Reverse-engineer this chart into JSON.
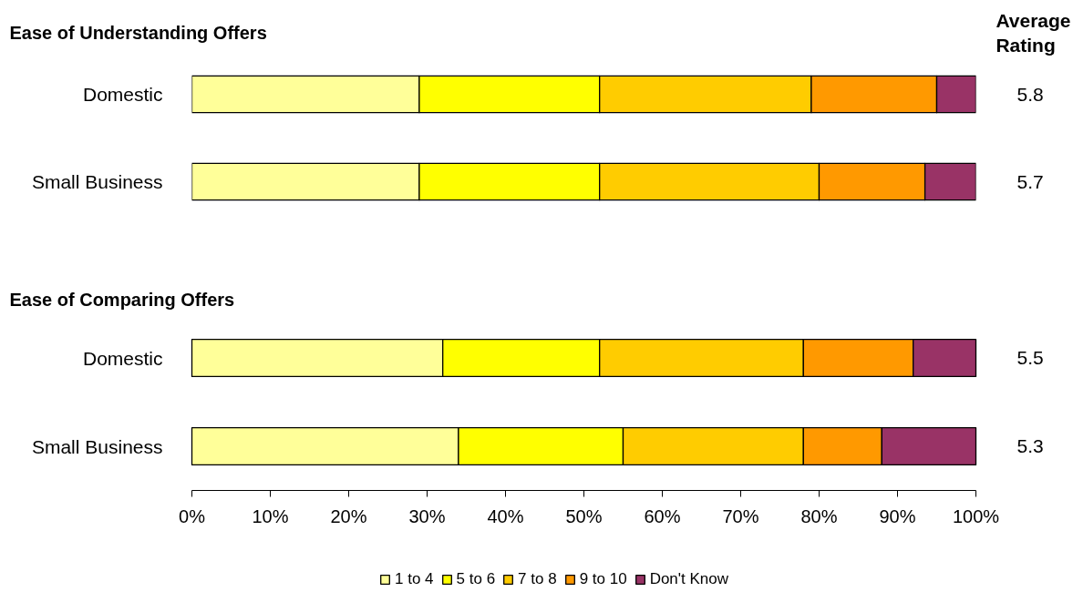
{
  "chart_data": [
    {
      "type": "bar",
      "orientation": "horizontal",
      "stacked": true,
      "title": "Ease of Understanding Offers",
      "categories": [
        "Domestic",
        "Small Business"
      ],
      "series": [
        {
          "color": "#ffff99",
          "values": [
            29,
            29
          ]
        },
        {
          "color": "#ffff00",
          "values": [
            23,
            23
          ]
        },
        {
          "color": "#ffcc00",
          "values": [
            27,
            28
          ]
        },
        {
          "color": "#ff9900",
          "values": [
            16,
            13.5
          ]
        },
        {
          "color": "#993366",
          "values": [
            5,
            6.5
          ]
        }
      ],
      "xlim": [
        0,
        100
      ],
      "tick_labels": "y",
      "annotations": [
        "Average Rating",
        "5.8",
        "5.7"
      ]
    },
    {
      "type": "bar",
      "orientation": "horizontal",
      "stacked": true,
      "title": "Ease of Comparing Offers",
      "categories": [
        "Domestic",
        "Small Business"
      ],
      "series": [
        {
          "name": "1 to 4",
          "color": "#ffff99",
          "values": [
            32,
            34
          ]
        },
        {
          "name": "5 to 6",
          "color": "#ffff00",
          "values": [
            20,
            21
          ]
        },
        {
          "name": "7 to 8",
          "color": "#ffcc00",
          "values": [
            26,
            23
          ]
        },
        {
          "name": "9 to 10",
          "color": "#ff9900",
          "values": [
            14,
            10
          ]
        },
        {
          "name": "Don't Know",
          "color": "#993366",
          "values": [
            8,
            12
          ]
        }
      ],
      "xlim": [
        0,
        100
      ],
      "xticks": [
        {
          "value": 0,
          "label": "0%"
        },
        {
          "value": 10,
          "label": "10%"
        },
        {
          "value": 20,
          "label": "20%"
        },
        {
          "value": 30,
          "label": "30%"
        },
        {
          "value": 40,
          "label": "40%"
        },
        {
          "value": 50,
          "label": "50%"
        },
        {
          "value": 60,
          "label": "60%"
        },
        {
          "value": 70,
          "label": "70%"
        },
        {
          "value": 80,
          "label": "80%"
        },
        {
          "value": 90,
          "label": "90%"
        },
        {
          "value": 100,
          "label": "100%"
        }
      ],
      "legend": "bottom",
      "annotations": [
        "5.5",
        "5.3"
      ]
    }
  ]
}
